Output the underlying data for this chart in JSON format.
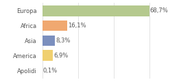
{
  "categories": [
    "Europa",
    "Africa",
    "Asia",
    "America",
    "Apolidi"
  ],
  "values": [
    68.7,
    16.1,
    8.3,
    6.9,
    0.1
  ],
  "labels": [
    "68,7%",
    "16,1%",
    "8,3%",
    "6,9%",
    "0,1%"
  ],
  "colors": [
    "#b5c98e",
    "#f0a870",
    "#7b8fbe",
    "#f0d070",
    "#dddddd"
  ],
  "background_color": "#ffffff",
  "bar_height": 0.72,
  "label_fontsize": 6.0,
  "category_fontsize": 6.0,
  "grid_color": "#d8d8d8",
  "text_color": "#555555",
  "xlim": [
    0,
    90
  ]
}
